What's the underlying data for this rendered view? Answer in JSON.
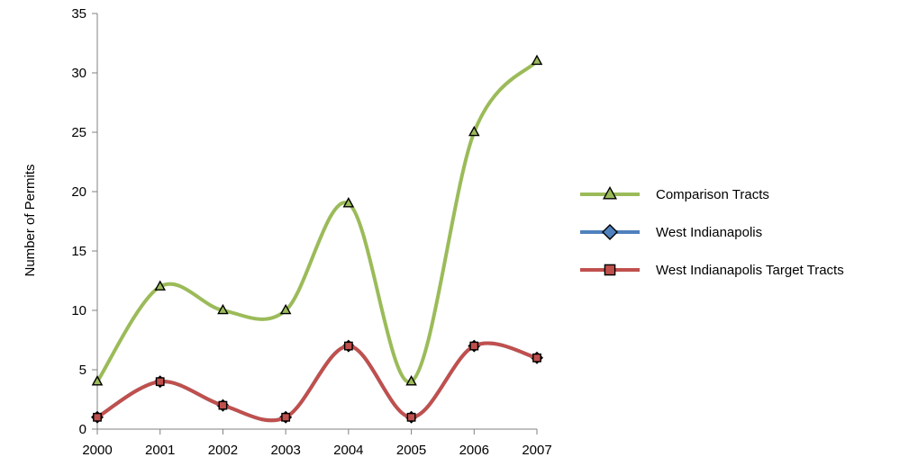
{
  "chart_data": {
    "type": "line",
    "categories": [
      "2000",
      "2001",
      "2002",
      "2003",
      "2004",
      "2005",
      "2006",
      "2007"
    ],
    "series": [
      {
        "name": "Comparison Tracts",
        "values": [
          4,
          12,
          10,
          10,
          19,
          4,
          25,
          31
        ],
        "color": "#9bbb59",
        "marker": "triangle"
      },
      {
        "name": "West Indianapolis",
        "values": [
          1,
          4,
          2,
          1,
          7,
          1,
          7,
          6
        ],
        "color": "#4f81bd",
        "marker": "diamond"
      },
      {
        "name": "West Indianapolis Target Tracts",
        "values": [
          1,
          4,
          2,
          1,
          7,
          1,
          7,
          6
        ],
        "color": "#c0504d",
        "marker": "square"
      }
    ],
    "title": "",
    "xlabel": "",
    "ylabel": "Number of Permits",
    "ylim": [
      0,
      35
    ],
    "yticks": [
      0,
      5,
      10,
      15,
      20,
      25,
      30,
      35
    ],
    "smooth": true,
    "grid": false,
    "legend": "right"
  }
}
